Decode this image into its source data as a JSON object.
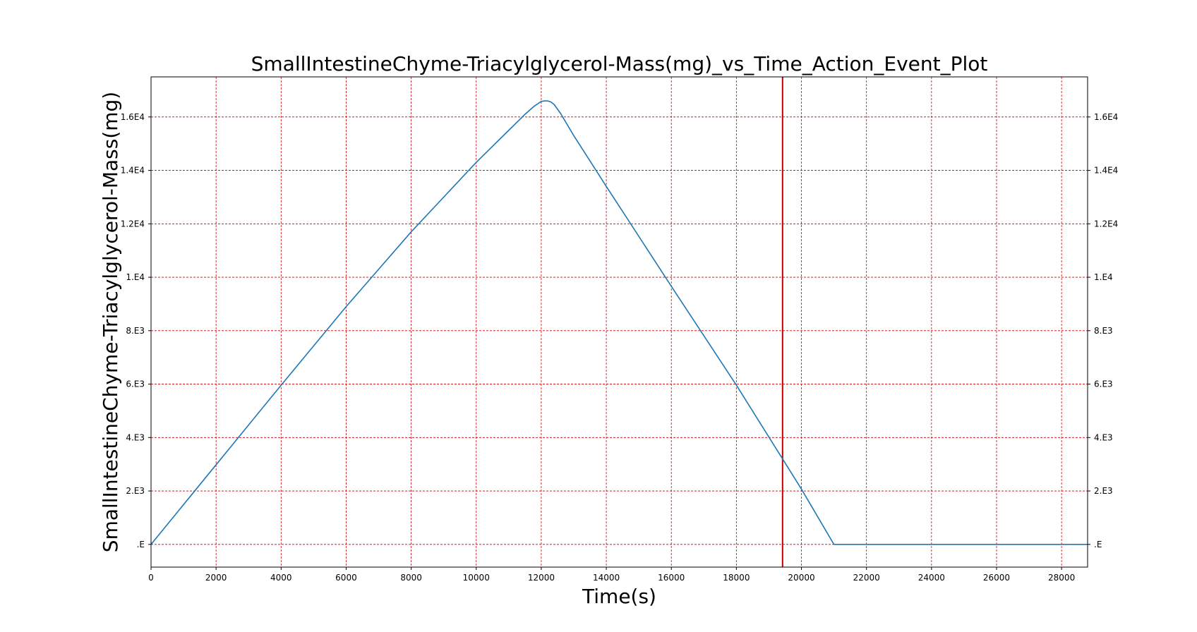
{
  "chart_data": {
    "type": "line",
    "title": "SmallIntestineChyme-Triacylglycerol-Mass(mg)_vs_Time_Action_Event_Plot",
    "xlabel": "Time(s)",
    "ylabel": "SmallIntestineChyme-Triacylglycerol-Mass(mg)",
    "xlim": [
      0,
      28800
    ],
    "ylim": [
      -850,
      17500
    ],
    "x_ticks": [
      0,
      2000,
      4000,
      6000,
      8000,
      10000,
      12000,
      14000,
      16000,
      18000,
      20000,
      22000,
      24000,
      26000,
      28000
    ],
    "x_tick_labels": [
      "0",
      "2000",
      "4000",
      "6000",
      "8000",
      "10000",
      "12000",
      "14000",
      "16000",
      "18000",
      "20000",
      "22000",
      "24000",
      "26000",
      "28000"
    ],
    "y_ticks": [
      0,
      2000,
      4000,
      6000,
      8000,
      10000,
      12000,
      14000,
      16000
    ],
    "y_tick_labels": [
      ".E",
      "2.E3",
      "4.E3",
      "6.E3",
      "8.E3",
      "1.E4",
      "1.2E4",
      "1.4E4",
      "1.6E4"
    ],
    "grid": true,
    "grid_color": "#cc0000",
    "line_color": "#1f77b4",
    "event_line_color": "#c00000",
    "event_lines_x": [
      19420
    ],
    "series": [
      {
        "x": [
          0,
          2000,
          4000,
          6000,
          8000,
          10000,
          11000,
          11500,
          11800,
          12000,
          12100,
          12200,
          12300,
          12400,
          12600,
          13000,
          14000,
          16000,
          18000,
          19420,
          20000,
          21000,
          21500,
          24000,
          26000,
          28000,
          28800
        ],
        "values": [
          0,
          2980,
          5960,
          8900,
          11700,
          14300,
          15500,
          16100,
          16420,
          16580,
          16600,
          16600,
          16560,
          16460,
          16120,
          15300,
          13400,
          9660,
          5960,
          3200,
          2070,
          0,
          0,
          0,
          0,
          0,
          0
        ]
      }
    ]
  }
}
